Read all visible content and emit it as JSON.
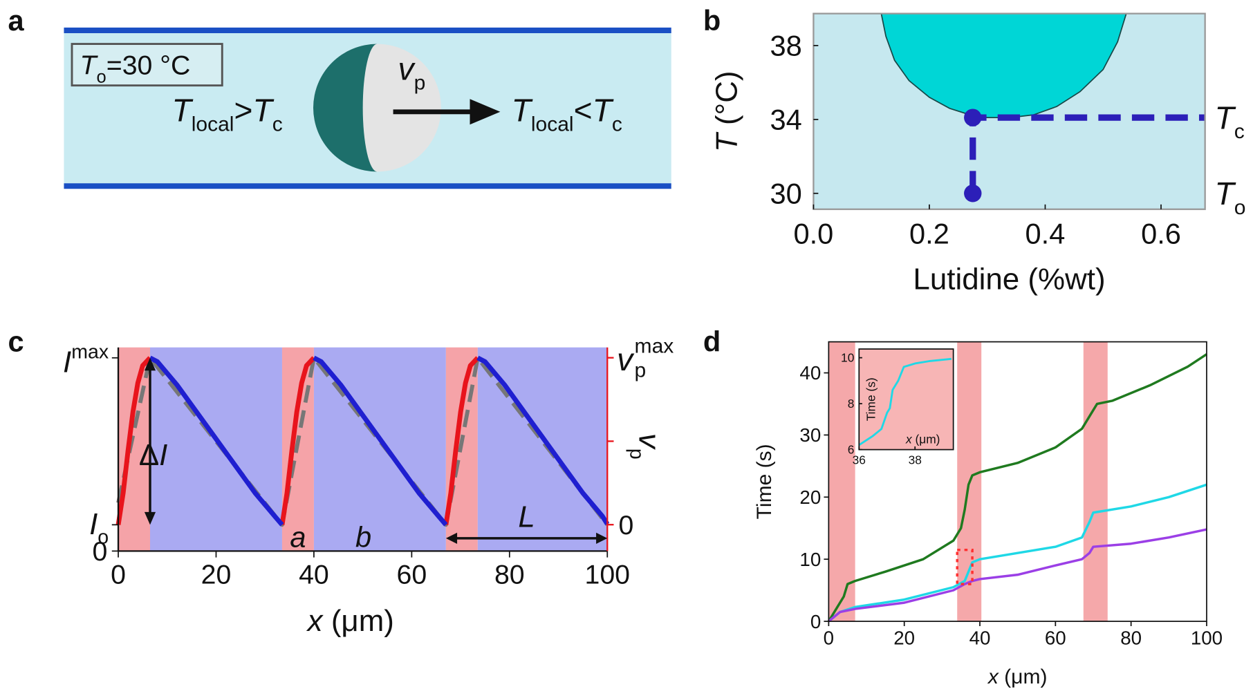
{
  "diagram": {
    "panel_label": "a",
    "box_label": [
      "T",
      "o",
      "=30 °C"
    ],
    "left_label": [
      "T",
      "local",
      ">",
      "T",
      "c"
    ],
    "arrow_label": [
      "v",
      "p"
    ],
    "right_label": [
      "T",
      "local",
      "<",
      "T",
      "c"
    ]
  },
  "chart_data": [
    {
      "type": "area",
      "panel_label": "b",
      "x": [
        0.117,
        0.125,
        0.14,
        0.165,
        0.2,
        0.235,
        0.27,
        0.3,
        0.34,
        0.38,
        0.42,
        0.46,
        0.5,
        0.525,
        0.54
      ],
      "y": [
        39.73,
        38.5,
        37.2,
        36.1,
        35.2,
        34.6,
        34.25,
        34.1,
        34.1,
        34.25,
        34.7,
        35.5,
        36.7,
        38.2,
        39.73
      ],
      "color": "#00d6d6",
      "background": "#c6e8ef",
      "markers": {
        "x": [
          0.275,
          0.275
        ],
        "y": [
          30,
          34.1
        ],
        "labels": [
          [
            "T",
            "o"
          ],
          [
            "T",
            "c"
          ]
        ],
        "color": "#2c1fb8"
      },
      "dashed": {
        "x": [
          0.275,
          0.275,
          0.676
        ],
        "y": [
          30,
          34.1,
          34.1
        ],
        "color": "#2c1fb8"
      },
      "xlim": [
        0,
        0.676
      ],
      "ylim": [
        29.14,
        39.73
      ],
      "xticks": [
        {
          "value": 0,
          "label": "0.0"
        },
        0.2,
        0.4,
        0.6
      ],
      "yticks": [
        30,
        34,
        38
      ],
      "xlabel": "Lutidine (%wt)",
      "ylabel": [
        "T",
        " (°C)"
      ]
    },
    {
      "type": "line",
      "panel_label": "c",
      "regions": [
        {
          "x": [
            0,
            6.5
          ],
          "color": "#f5a3a8"
        },
        {
          "x": [
            6.5,
            33.5
          ],
          "color": "#aaaaf2"
        },
        {
          "x": [
            33.5,
            40
          ],
          "color": "#f5a3a8"
        },
        {
          "x": [
            40,
            67
          ],
          "color": "#aaaaf2"
        },
        {
          "x": [
            67,
            73.5
          ],
          "color": "#f5a3a8"
        },
        {
          "x": [
            73.5,
            100
          ],
          "color": "#aaaaf2"
        }
      ],
      "series": [
        {
          "color": "#777777",
          "dash": true,
          "x": [
            0,
            6.5,
            33.5,
            40,
            67,
            73.5,
            100
          ],
          "y": [
            0.25,
            1,
            0.136,
            1,
            0.136,
            1,
            0.136
          ]
        },
        {
          "color": "#e8141c",
          "x": [
            0,
            1,
            2,
            3,
            4,
            5,
            6.5
          ],
          "y": [
            0.136,
            0.3,
            0.52,
            0.72,
            0.87,
            0.96,
            1.0
          ]
        },
        {
          "color": "#e8141c",
          "x": [
            33.5,
            34.5,
            35.5,
            36.5,
            37.5,
            38.5,
            40
          ],
          "y": [
            0.136,
            0.3,
            0.52,
            0.72,
            0.87,
            0.96,
            1.0
          ]
        },
        {
          "color": "#e8141c",
          "x": [
            67,
            68,
            69,
            70,
            71,
            72,
            73.5
          ],
          "y": [
            0.136,
            0.3,
            0.52,
            0.72,
            0.87,
            0.96,
            1.0
          ]
        },
        {
          "color": "#1f1fd0",
          "x": [
            6.5,
            8,
            12,
            16,
            20,
            24,
            28,
            32,
            33.5
          ],
          "y": [
            1.0,
            0.98,
            0.86,
            0.72,
            0.58,
            0.44,
            0.3,
            0.18,
            0.136
          ]
        },
        {
          "color": "#1f1fd0",
          "x": [
            40,
            41.5,
            45.5,
            49.5,
            53.5,
            57.5,
            61.5,
            65.5,
            67
          ],
          "y": [
            1.0,
            0.98,
            0.86,
            0.72,
            0.58,
            0.44,
            0.3,
            0.18,
            0.136
          ]
        },
        {
          "color": "#1f1fd0",
          "x": [
            73.5,
            75,
            79,
            83,
            87,
            91,
            95,
            99,
            100
          ],
          "y": [
            1.0,
            0.98,
            0.86,
            0.72,
            0.58,
            0.44,
            0.3,
            0.18,
            0.14
          ]
        }
      ],
      "xlim": [
        0,
        100
      ],
      "ylim": [
        0,
        1.054
      ],
      "y2lim": [
        -0.158,
        1.062
      ],
      "xticks": [
        0,
        20,
        40,
        60,
        80,
        100
      ],
      "yticks": [
        0,
        {
          "value": 0.136,
          "label": [
            "I",
            "o"
          ]
        },
        {
          "value": 1,
          "label": [
            "I",
            "max"
          ]
        }
      ],
      "y2ticks": [
        0,
        {
          "value": 1,
          "label": [
            "v",
            "p",
            "max"
          ]
        }
      ],
      "y2minor_ticks": [
        0.5
      ],
      "y2color": "#e8141c",
      "xlabel": [
        "x",
        " (μm)"
      ],
      "y2label": [
        "v",
        "p"
      ],
      "annotations": {
        "delta": [
          "Δ",
          "I"
        ],
        "a": "a",
        "b": "b",
        "L": "L"
      }
    },
    {
      "type": "line",
      "panel_label": "d",
      "regions": [
        {
          "x": [
            0,
            7
          ],
          "color": "#f5a8aa"
        },
        {
          "x": [
            34,
            40.4
          ],
          "color": "#f5a8aa"
        },
        {
          "x": [
            67.4,
            73.8
          ],
          "color": "#f5a8aa"
        }
      ],
      "series": [
        {
          "color": "#1f7a1f",
          "x": [
            0,
            2,
            4,
            5,
            7,
            15,
            25,
            33,
            35,
            36,
            37,
            38,
            40,
            50,
            60,
            67,
            69,
            71,
            75,
            85,
            95,
            100
          ],
          "y": [
            0,
            2,
            4,
            6,
            6.5,
            8,
            10,
            13,
            15,
            18,
            22,
            23.5,
            24,
            25.5,
            28,
            31,
            33,
            35,
            35.5,
            38,
            41,
            43
          ]
        },
        {
          "color": "#1fd8e6",
          "x": [
            0,
            3,
            7,
            20,
            33,
            36,
            37,
            38,
            40,
            50,
            60,
            67,
            69,
            70,
            80,
            90,
            100
          ],
          "y": [
            0,
            1.5,
            2.3,
            3.5,
            5.5,
            6.5,
            8,
            9.5,
            10,
            11,
            12,
            13.5,
            16,
            17.5,
            18.5,
            20,
            22
          ]
        },
        {
          "color": "#9b3fe6",
          "x": [
            0,
            3,
            7,
            20,
            33,
            36,
            38,
            40,
            50,
            60,
            67,
            69,
            70,
            80,
            90,
            100
          ],
          "y": [
            0,
            1.5,
            2,
            3,
            5,
            6,
            6.5,
            6.8,
            7.5,
            9,
            10,
            11,
            12,
            12.5,
            13.5,
            14.8
          ]
        }
      ],
      "highlight": {
        "x": [
          34,
          38
        ],
        "y": [
          6,
          11.5
        ],
        "color": "#ff3030"
      },
      "xlim": [
        0,
        100
      ],
      "ylim": [
        0,
        45
      ],
      "xticks": [
        0,
        20,
        40,
        60,
        80,
        100
      ],
      "yticks": [
        0,
        10,
        20,
        30,
        40
      ],
      "xlabel": [
        "x",
        " (μm)"
      ],
      "ylabel": "Time (s)"
    },
    {
      "type": "line",
      "background": "#f7b5b5",
      "series": [
        {
          "color": "#1fd8e6",
          "x": [
            36,
            36.5,
            36.8,
            37,
            37.1,
            37.2,
            37.4,
            37.6,
            38,
            38.5,
            39.3
          ],
          "y": [
            6.2,
            6.6,
            6.9,
            7.6,
            7.8,
            8.6,
            9.0,
            9.6,
            9.75,
            9.85,
            9.95
          ]
        }
      ],
      "xlim": [
        36,
        39.37
      ],
      "ylim": [
        6,
        10.38
      ],
      "xticks": [
        36,
        38
      ],
      "yticks": [
        6,
        8,
        10
      ],
      "xlabel": [
        "x",
        " (μm)"
      ],
      "ylabel": "Time (s)"
    }
  ]
}
